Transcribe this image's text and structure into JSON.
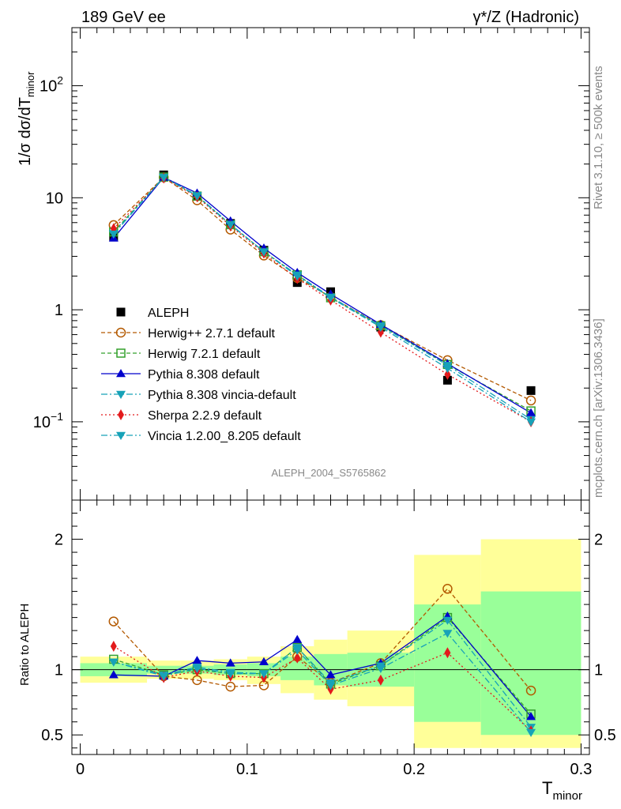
{
  "header": {
    "left": "189 GeV ee",
    "right": "γ*/Z (Hadronic)"
  },
  "side_labels": {
    "rivet": "Rivet 3.1.10, ≥ 500k events",
    "mcplots": "mcplots.cern.ch [arXiv:1306.3436]"
  },
  "watermark": "ALEPH_2004_S5765862",
  "chart_data": [
    {
      "type": "line",
      "title": "189 GeV ee   γ*/Z (Hadronic)",
      "ylabel": "1/σ  dσ/dT_minor",
      "yscale": "log",
      "ylim": [
        0.02,
        330
      ],
      "xlim": [
        -0.005,
        0.305
      ],
      "x": [
        0.02,
        0.05,
        0.07,
        0.09,
        0.11,
        0.13,
        0.15,
        0.18,
        0.22,
        0.27
      ],
      "y_tick_labels": [
        "10^-1",
        "1",
        "10",
        "10^2"
      ],
      "series": [
        {
          "name": "ALEPH",
          "values": [
            4.5,
            16.0,
            10.3,
            5.9,
            3.4,
            1.75,
            1.45,
            0.7,
            0.235,
            0.19
          ],
          "color": "#000000"
        },
        {
          "name": "Herwig++ 2.7.1 default",
          "values": [
            5.7,
            15.2,
            9.5,
            5.2,
            3.05,
            1.92,
            1.3,
            0.73,
            0.355,
            0.155
          ],
          "color": "#b35900"
        },
        {
          "name": "Herwig 7.2.1 default",
          "values": [
            4.95,
            15.3,
            10.35,
            5.75,
            3.3,
            2.05,
            1.28,
            0.72,
            0.325,
            0.125
          ],
          "color": "#33a02c"
        },
        {
          "name": "Pythia 8.308 default",
          "values": [
            4.35,
            15.2,
            11.0,
            6.2,
            3.55,
            2.15,
            1.38,
            0.74,
            0.33,
            0.12
          ],
          "color": "#0000cc"
        },
        {
          "name": "Pythia 8.308 vincia-default",
          "values": [
            4.8,
            15.3,
            10.5,
            5.8,
            3.3,
            2.05,
            1.3,
            0.72,
            0.32,
            0.105
          ],
          "color": "#17a2b8"
        },
        {
          "name": "Sherpa 2.2.9 default",
          "values": [
            5.3,
            15.0,
            10.2,
            5.6,
            3.2,
            1.9,
            1.22,
            0.63,
            0.265,
            0.1
          ],
          "color": "#e31a1c"
        },
        {
          "name": "Vincia 1.2.00_8.205 default",
          "values": [
            4.75,
            15.2,
            10.4,
            5.75,
            3.3,
            2.0,
            1.28,
            0.7,
            0.3,
            0.1
          ],
          "color": "#17a2b8"
        }
      ]
    },
    {
      "type": "line",
      "ylabel": "Ratio to ALEPH",
      "xlabel": "T_minor",
      "xlim": [
        -0.005,
        0.305
      ],
      "ylim": [
        0.35,
        2.3
      ],
      "x_ticks": [
        0,
        0.1,
        0.2,
        0.3
      ],
      "x_tick_labels": [
        "0",
        "0.1",
        "0.2",
        "0.3"
      ],
      "y_ticks": [
        0.5,
        1,
        2
      ],
      "y_tick_labels": [
        "0.5",
        "1",
        "2"
      ],
      "x": [
        0.02,
        0.05,
        0.07,
        0.09,
        0.11,
        0.13,
        0.15,
        0.18,
        0.22,
        0.27
      ],
      "bins": [
        [
          0,
          0.04
        ],
        [
          0.04,
          0.06
        ],
        [
          0.06,
          0.08
        ],
        [
          0.08,
          0.1
        ],
        [
          0.1,
          0.12
        ],
        [
          0.12,
          0.14
        ],
        [
          0.14,
          0.16
        ],
        [
          0.16,
          0.2
        ],
        [
          0.2,
          0.24
        ],
        [
          0.24,
          0.3
        ]
      ],
      "band_inner": [
        [
          0.95,
          1.05
        ],
        [
          0.97,
          1.03
        ],
        [
          0.97,
          1.03
        ],
        [
          0.96,
          1.04
        ],
        [
          0.95,
          1.05
        ],
        [
          0.92,
          1.1
        ],
        [
          0.88,
          1.12
        ],
        [
          0.87,
          1.13
        ],
        [
          0.6,
          1.5
        ],
        [
          0.5,
          1.6
        ]
      ],
      "band_outer": [
        [
          0.9,
          1.1
        ],
        [
          0.93,
          1.07
        ],
        [
          0.93,
          1.07
        ],
        [
          0.92,
          1.08
        ],
        [
          0.89,
          1.1
        ],
        [
          0.82,
          1.18
        ],
        [
          0.77,
          1.23
        ],
        [
          0.72,
          1.3
        ],
        [
          0.4,
          1.88
        ],
        [
          0.4,
          2.0
        ]
      ],
      "series": [
        {
          "name": "Herwig++ 2.7.1 default",
          "values": [
            1.37,
            0.95,
            0.92,
            0.87,
            0.88,
            1.1,
            0.9,
            1.05,
            1.62,
            0.84
          ]
        },
        {
          "name": "Herwig 7.2.1 default",
          "values": [
            1.08,
            0.96,
            1.0,
            0.97,
            0.97,
            1.17,
            0.89,
            1.03,
            1.4,
            0.66
          ]
        },
        {
          "name": "Pythia 8.308 default",
          "values": [
            0.96,
            0.95,
            1.07,
            1.05,
            1.06,
            1.23,
            0.96,
            1.05,
            1.41,
            0.64
          ]
        },
        {
          "name": "Pythia 8.308 vincia-default",
          "values": [
            1.06,
            0.96,
            1.02,
            0.98,
            0.97,
            1.17,
            0.9,
            1.03,
            1.38,
            0.56
          ]
        },
        {
          "name": "Sherpa 2.2.9 default",
          "values": [
            1.18,
            0.94,
            0.99,
            0.95,
            0.94,
            1.09,
            0.85,
            0.92,
            1.13,
            0.53
          ]
        },
        {
          "name": "Vincia 1.2.00_8.205 default",
          "values": [
            1.06,
            0.95,
            1.01,
            0.97,
            0.97,
            1.15,
            0.88,
            1.01,
            1.28,
            0.52
          ]
        }
      ]
    }
  ]
}
